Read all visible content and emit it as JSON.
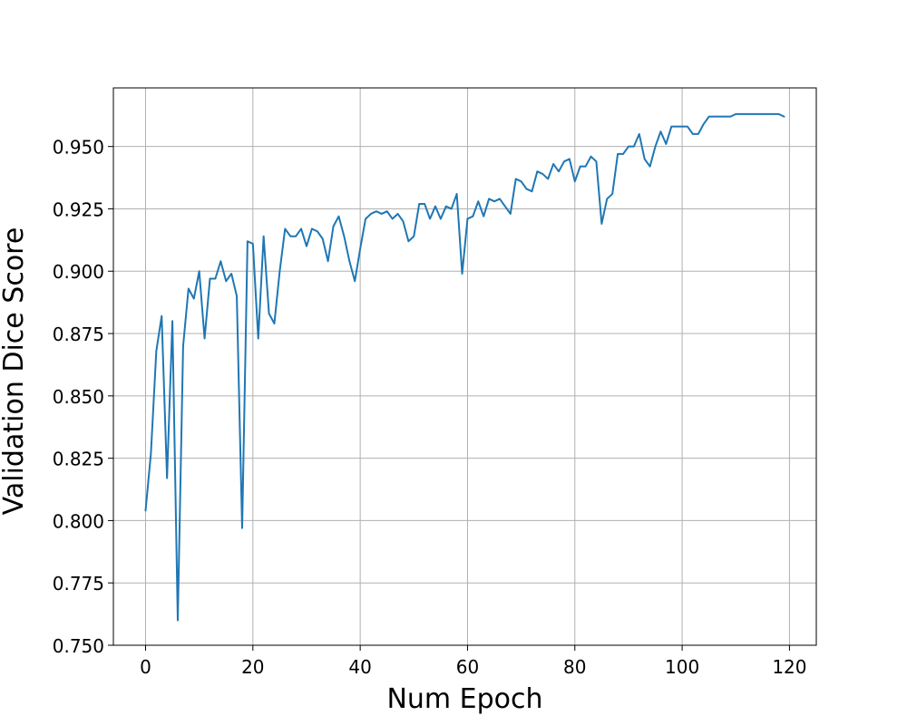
{
  "chart_data": {
    "type": "line",
    "title": "",
    "xlabel": "Num Epoch",
    "ylabel": "Validation Dice Score",
    "xlim": [
      -6,
      125
    ],
    "ylim": [
      0.75,
      0.9735
    ],
    "grid": true,
    "xticks": [
      0,
      20,
      40,
      60,
      80,
      100,
      120
    ],
    "xtick_labels": [
      "0",
      "20",
      "40",
      "60",
      "80",
      "100",
      "120"
    ],
    "yticks": [
      0.75,
      0.775,
      0.8,
      0.825,
      0.85,
      0.875,
      0.9,
      0.925,
      0.95
    ],
    "ytick_labels": [
      "0.750",
      "0.775",
      "0.800",
      "0.825",
      "0.850",
      "0.875",
      "0.900",
      "0.925",
      "0.950"
    ],
    "colors": {
      "line": "#1f77b4",
      "grid": "#b0b0b0",
      "axes": "#000000"
    },
    "series": [
      {
        "values": [
          0.804,
          0.827,
          0.868,
          0.882,
          0.817,
          0.88,
          0.76,
          0.87,
          0.893,
          0.889,
          0.9,
          0.873,
          0.897,
          0.897,
          0.904,
          0.896,
          0.899,
          0.89,
          0.797,
          0.912,
          0.911,
          0.873,
          0.914,
          0.883,
          0.879,
          0.9,
          0.917,
          0.914,
          0.914,
          0.917,
          0.91,
          0.917,
          0.916,
          0.913,
          0.904,
          0.918,
          0.922,
          0.914,
          0.904,
          0.896,
          0.909,
          0.921,
          0.923,
          0.924,
          0.923,
          0.924,
          0.921,
          0.923,
          0.92,
          0.912,
          0.914,
          0.927,
          0.927,
          0.921,
          0.926,
          0.921,
          0.926,
          0.925,
          0.931,
          0.899,
          0.921,
          0.922,
          0.928,
          0.922,
          0.929,
          0.928,
          0.929,
          0.926,
          0.923,
          0.937,
          0.936,
          0.933,
          0.932,
          0.94,
          0.939,
          0.937,
          0.943,
          0.94,
          0.944,
          0.945,
          0.936,
          0.942,
          0.942,
          0.946,
          0.944,
          0.919,
          0.929,
          0.931,
          0.947,
          0.947,
          0.95,
          0.95,
          0.955,
          0.945,
          0.942,
          0.95,
          0.956,
          0.951,
          0.958,
          0.958,
          0.958,
          0.958,
          0.955,
          0.955,
          0.959,
          0.962,
          0.962,
          0.962,
          0.962,
          0.962,
          0.963,
          0.963,
          0.963,
          0.963,
          0.963,
          0.963,
          0.963,
          0.963,
          0.963,
          0.962
        ]
      }
    ]
  }
}
